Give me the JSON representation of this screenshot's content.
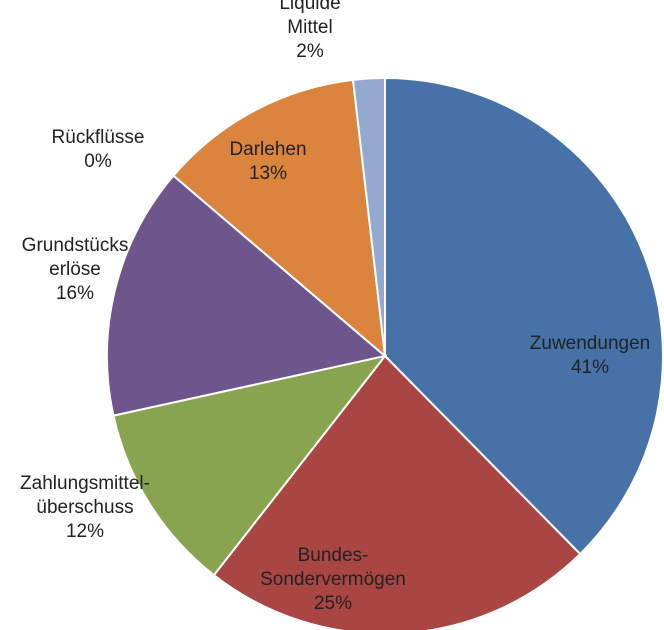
{
  "chart_data": {
    "type": "pie",
    "categories": [
      [
        "Zuwendungen"
      ],
      [
        "Bundes-",
        "Sondervermögen"
      ],
      [
        "Zahlungsmittel-",
        "überschuss"
      ],
      [
        "Grundstücks",
        "erlöse"
      ],
      [
        "Rückflüsse"
      ],
      [
        "Darlehen"
      ],
      [
        "Liquide",
        "Mittel"
      ]
    ],
    "values": [
      41,
      25,
      12,
      16,
      0,
      13,
      2
    ],
    "value_labels": [
      "41%",
      "25%",
      "12%",
      "16%",
      "0%",
      "13%",
      "2%"
    ],
    "colors": [
      "#4672a8",
      "#a94543",
      "#88a44f",
      "#6e558c",
      "#c9c9c9",
      "#db843d",
      "#93a9cf"
    ]
  }
}
